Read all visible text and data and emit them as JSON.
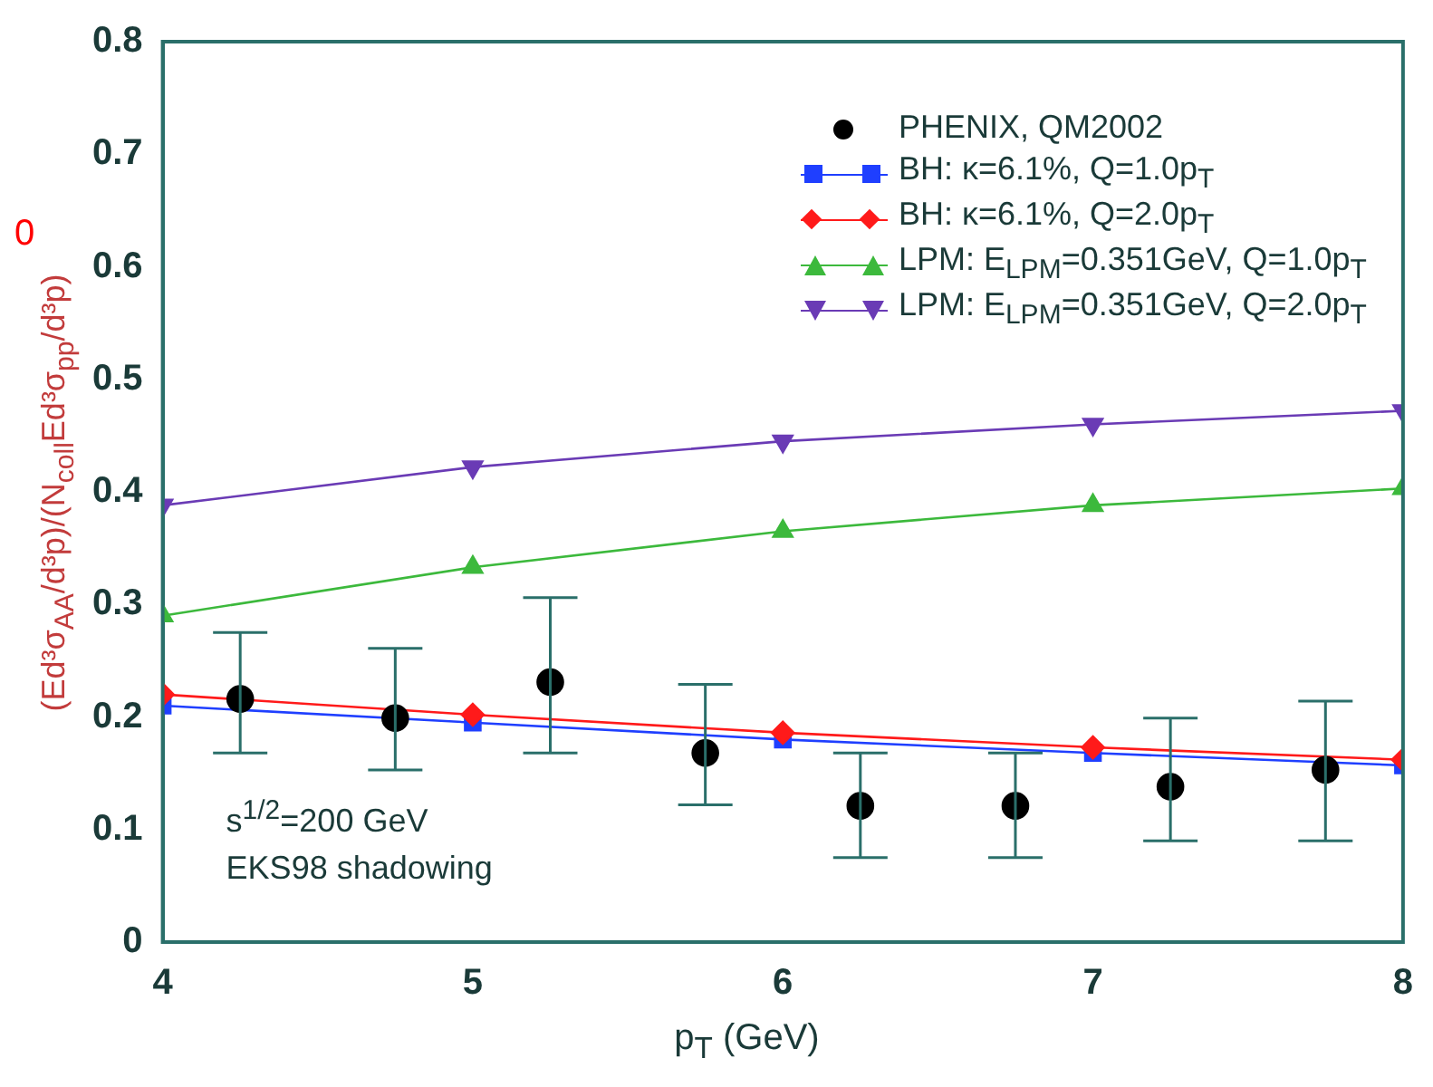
{
  "chart_data": {
    "type": "line",
    "xlabel": "p$_{T}$ (GeV)",
    "ylabel": "(Ed³σ$_{AA}$/d³p)/(N$_{coll}$Ed³σ$_{pp}$/d³p)",
    "xlim": [
      4,
      8
    ],
    "xticks": [
      4,
      5,
      6,
      7,
      8
    ],
    "ylim": [
      0,
      0.8
    ],
    "yticks": [
      0,
      0.1,
      0.2,
      0.3,
      0.4,
      0.5,
      0.6,
      0.7,
      0.8
    ],
    "grid": false,
    "legend": "top right",
    "series": [
      {
        "name": "PHENIX, QM2002",
        "type": "scatter",
        "marker": "circle",
        "color": "#000000",
        "x": [
          4.25,
          4.75,
          5.25,
          5.75,
          6.25,
          6.75,
          7.25,
          7.75
        ],
        "values": [
          0.216,
          0.199,
          0.231,
          0.168,
          0.121,
          0.121,
          0.138,
          0.153
        ],
        "errors": [
          [
            0.168,
            0.275
          ],
          [
            0.153,
            0.261
          ],
          [
            0.168,
            0.306
          ],
          [
            0.122,
            0.229
          ],
          [
            0.075,
            0.168
          ],
          [
            0.075,
            0.168
          ],
          [
            0.09,
            0.199
          ],
          [
            0.09,
            0.214
          ]
        ]
      },
      {
        "name": "BH: κ=6.1%, Q=1.0p$_{T}$",
        "type": "line",
        "marker": "square",
        "color": "#1f3fff",
        "x": [
          4,
          5,
          6,
          7,
          8
        ],
        "values": [
          0.21,
          0.195,
          0.18,
          0.168,
          0.157
        ]
      },
      {
        "name": "BH: κ=6.1%, Q=2.0p$_{T}$",
        "type": "line",
        "marker": "diamond",
        "color": "#ff1a1a",
        "x": [
          4,
          5,
          6,
          7,
          8
        ],
        "values": [
          0.22,
          0.202,
          0.186,
          0.173,
          0.162
        ]
      },
      {
        "name": "LPM: E$_{LPM}$=0.351GeV, Q=1.0p$_{T}$",
        "type": "line",
        "marker": "triangle",
        "color": "#3cb93c",
        "x": [
          4,
          5,
          6,
          7,
          8
        ],
        "values": [
          0.29,
          0.333,
          0.365,
          0.388,
          0.403
        ]
      },
      {
        "name": "LPM: E$_{LPM}$=0.351GeV, Q=2.0p$_{T}$",
        "type": "line",
        "marker": "triangle-down",
        "color": "#6a3bb5",
        "x": [
          4,
          5,
          6,
          7,
          8
        ],
        "values": [
          0.388,
          0.422,
          0.445,
          0.46,
          0.472
        ]
      }
    ],
    "annotations": [
      "s$^{1/2}$=200 GeV",
      "EKS98 shadowing",
      "0"
    ]
  }
}
